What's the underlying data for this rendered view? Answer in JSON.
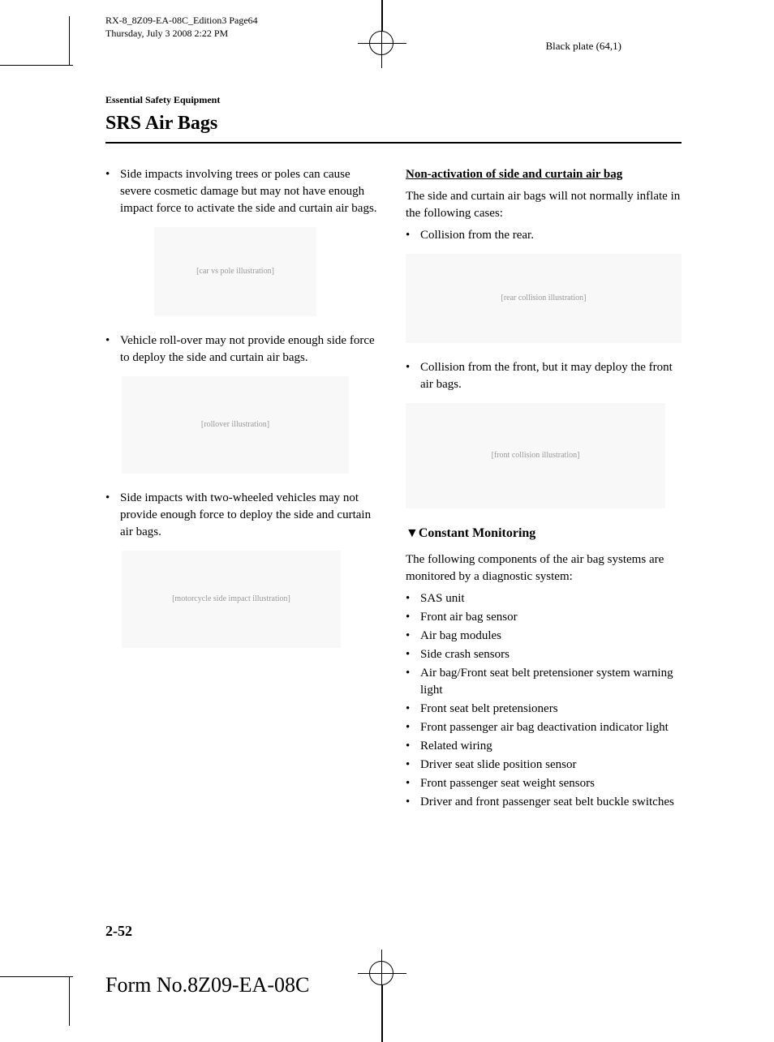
{
  "header": {
    "doc_id": "RX-8_8Z09-EA-08C_Edition3 Page64",
    "timestamp": "Thursday, July 3 2008 2:22 PM",
    "plate": "Black plate (64,1)"
  },
  "section": {
    "label": "Essential Safety Equipment",
    "title": "SRS Air Bags"
  },
  "left_col": {
    "item1": "Side impacts involving trees or poles can cause severe cosmetic damage but may not have enough impact force to activate the side and curtain air bags.",
    "item2": "Vehicle roll-over may not provide enough side force to deploy the side and curtain air bags.",
    "item3": "Side impacts with two-wheeled vehicles may not provide enough force to deploy the side and curtain air bags.",
    "fig1_alt": "[car vs pole illustration]",
    "fig2_alt": "[rollover illustration]",
    "fig3_alt": "[motorcycle side impact illustration]"
  },
  "right_col": {
    "heading1": "Non-activation of side and curtain air bag",
    "para1": "The side and curtain air bags will not normally inflate in the following cases:",
    "bullet1": "Collision from the rear.",
    "bullet2": "Collision from the front, but it may deploy the front air bags.",
    "fig4_alt": "[rear collision illustration]",
    "fig5_alt": "[front collision illustration]",
    "heading2": "▼Constant Monitoring",
    "para2": "The following components of the air bag systems are monitored by a diagnostic system:",
    "monitor_items": {
      "i1": "SAS unit",
      "i2": "Front air bag sensor",
      "i3": "Air bag modules",
      "i4": "Side crash sensors",
      "i5": "Air bag/Front seat belt pretensioner system warning light",
      "i6": "Front seat belt pretensioners",
      "i7": "Front passenger air bag deactivation indicator light",
      "i8": "Related wiring",
      "i9": "Driver seat slide position sensor",
      "i10": "Front passenger seat weight sensors",
      "i11": "Driver and front passenger seat belt buckle switches"
    }
  },
  "footer": {
    "page_num": "2-52",
    "form_no": "Form No.8Z09-EA-08C"
  },
  "bullet_char": "•"
}
